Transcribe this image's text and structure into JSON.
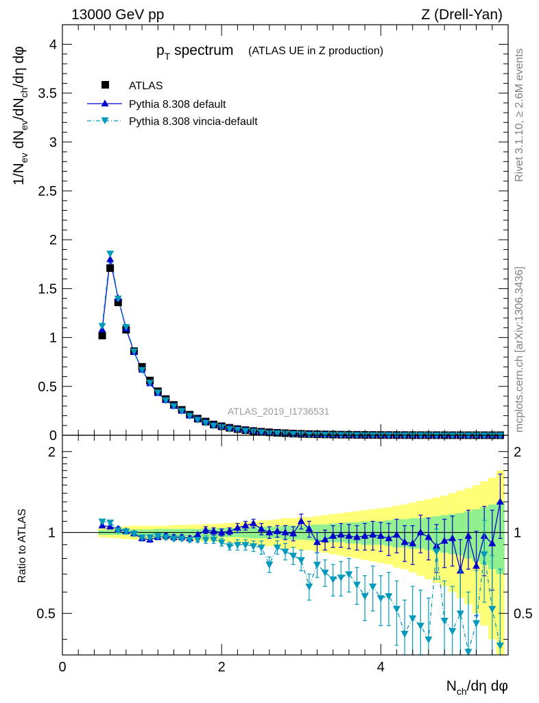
{
  "header": {
    "left": "13000 GeV pp",
    "right": "Z (Drell-Yan)"
  },
  "side_text": {
    "rivet": "Rivet 3.1.10, ≥ 2.6M events",
    "mcplots": "mcplots.cern.ch [arXiv:1306.3436]"
  },
  "chart_data": [
    {
      "type": "scatter",
      "panel": "main",
      "title": "p_T spectrum",
      "title_main": "p",
      "title_sub": "T",
      "title_rest": " spectrum",
      "subtitle": "(ATLAS UE in Z production)",
      "analysis_label": "ATLAS_2019_I1736531",
      "ylabel": "1/N_ev dN_ev/dN_ch/dη dφ",
      "xlim": [
        0,
        5.6
      ],
      "ylim": [
        0,
        4.2
      ],
      "yticks": [
        "0",
        "0.5",
        "1",
        "1.5",
        "2",
        "2.5",
        "3",
        "3.5",
        "4"
      ],
      "legend_position": "top-left",
      "x": [
        0.5,
        0.6,
        0.7,
        0.8,
        0.9,
        1.0,
        1.1,
        1.2,
        1.3,
        1.4,
        1.5,
        1.6,
        1.7,
        1.8,
        1.9,
        2.0,
        2.1,
        2.2,
        2.3,
        2.4,
        2.5,
        2.6,
        2.7,
        2.8,
        2.9,
        3.0,
        3.1,
        3.2,
        3.3,
        3.4,
        3.5,
        3.6,
        3.7,
        3.8,
        3.9,
        4.0,
        4.1,
        4.2,
        4.3,
        4.4,
        4.5,
        4.6,
        4.7,
        4.8,
        4.9,
        5.0,
        5.1,
        5.2,
        5.3,
        5.4,
        5.5
      ],
      "series": [
        {
          "name": "ATLAS",
          "color": "#000000",
          "marker": "square",
          "values": [
            1.02,
            1.71,
            1.36,
            1.08,
            0.86,
            0.7,
            0.56,
            0.45,
            0.37,
            0.31,
            0.26,
            0.21,
            0.17,
            0.14,
            0.11,
            0.092,
            0.076,
            0.063,
            0.052,
            0.043,
            0.036,
            0.03,
            0.025,
            0.021,
            0.017,
            0.014,
            0.012,
            0.01,
            0.0085,
            0.0071,
            0.0059,
            0.005,
            0.0042,
            0.0035,
            0.0029,
            0.0025,
            0.0021,
            0.0017,
            0.0015,
            0.0012,
            0.001,
            0.0009,
            0.0007,
            0.0006,
            0.0005,
            0.0004,
            0.0004,
            0.0003,
            0.0003,
            0.0002,
            0.0002
          ]
        },
        {
          "name": "Pythia 8.308 default",
          "color": "#0000cc",
          "marker": "triangle-up",
          "values": [
            1.08,
            1.8,
            1.4,
            1.09,
            0.85,
            0.67,
            0.53,
            0.43,
            0.36,
            0.3,
            0.25,
            0.2,
            0.17,
            0.14,
            0.11,
            0.092,
            0.077,
            0.065,
            0.055,
            0.046,
            0.037,
            0.03,
            0.025,
            0.021,
            0.018,
            0.015,
            0.012,
            0.0092,
            0.0078,
            0.0068,
            0.0056,
            0.0048,
            0.004,
            0.0034,
            0.0028,
            0.0023,
            0.002,
            0.0016,
            0.0014,
            0.0011,
            0.0009,
            0.0009,
            0.0006,
            0.0005,
            0.0005,
            0.0003,
            0.0004,
            0.0002,
            0.0003,
            0.0002,
            0.00026
          ]
        },
        {
          "name": "Pythia 8.308 vincia-default",
          "color": "#0099bb",
          "marker": "triangle-down",
          "values": [
            1.12,
            1.86,
            1.4,
            1.11,
            0.86,
            0.67,
            0.54,
            0.44,
            0.36,
            0.3,
            0.25,
            0.2,
            0.16,
            0.13,
            0.1,
            0.085,
            0.067,
            0.057,
            0.047,
            0.039,
            0.032,
            0.023,
            0.022,
            0.018,
            0.014,
            0.012,
            0.0076,
            0.0079,
            0.006,
            0.0048,
            0.004,
            0.0035,
            0.003,
            0.0023,
            0.002,
            0.0016,
            0.0014,
            0.0011,
            0.0009,
            0.0007,
            0.0006,
            0.0005,
            0.0004,
            0.0003,
            0.0002,
            0.0003,
            0.0002,
            0.0001,
            0.0001,
            0.0001,
            8e-05
          ]
        }
      ]
    },
    {
      "type": "scatter",
      "panel": "ratio",
      "ylabel": "Ratio to ATLAS",
      "xlabel": "N_ch/dη dφ",
      "xlim": [
        0,
        5.6
      ],
      "ylim": [
        0.35,
        2.3
      ],
      "ylog": true,
      "xticks": [
        "0",
        "2",
        "4"
      ],
      "yticks": [
        "0.5",
        "1",
        "2"
      ],
      "x": [
        0.5,
        0.6,
        0.7,
        0.8,
        0.9,
        1.0,
        1.1,
        1.2,
        1.3,
        1.4,
        1.5,
        1.6,
        1.7,
        1.8,
        1.9,
        2.0,
        2.1,
        2.2,
        2.3,
        2.4,
        2.5,
        2.6,
        2.7,
        2.8,
        2.9,
        3.0,
        3.1,
        3.2,
        3.3,
        3.4,
        3.5,
        3.6,
        3.7,
        3.8,
        3.9,
        4.0,
        4.1,
        4.2,
        4.3,
        4.4,
        4.5,
        4.6,
        4.7,
        4.8,
        4.9,
        5.0,
        5.1,
        5.2,
        5.3,
        5.4,
        5.5
      ],
      "band_stat_halfwidth": [
        0.02,
        0.02,
        0.02,
        0.02,
        0.025,
        0.025,
        0.025,
        0.03,
        0.03,
        0.03,
        0.03,
        0.03,
        0.03,
        0.035,
        0.035,
        0.04,
        0.04,
        0.04,
        0.045,
        0.05,
        0.05,
        0.05,
        0.05,
        0.06,
        0.06,
        0.06,
        0.065,
        0.07,
        0.07,
        0.08,
        0.08,
        0.09,
        0.09,
        0.1,
        0.1,
        0.1,
        0.11,
        0.12,
        0.12,
        0.13,
        0.13,
        0.14,
        0.15,
        0.16,
        0.17,
        0.18,
        0.2,
        0.22,
        0.24,
        0.27,
        0.3
      ],
      "band_total_halfwidth": [
        0.04,
        0.045,
        0.05,
        0.055,
        0.06,
        0.06,
        0.06,
        0.06,
        0.06,
        0.065,
        0.065,
        0.07,
        0.07,
        0.075,
        0.075,
        0.08,
        0.085,
        0.09,
        0.095,
        0.1,
        0.11,
        0.11,
        0.12,
        0.13,
        0.13,
        0.14,
        0.14,
        0.15,
        0.16,
        0.17,
        0.18,
        0.19,
        0.2,
        0.21,
        0.22,
        0.23,
        0.24,
        0.26,
        0.27,
        0.29,
        0.31,
        0.33,
        0.35,
        0.37,
        0.4,
        0.43,
        0.46,
        0.5,
        0.55,
        0.6,
        0.7
      ],
      "series": [
        {
          "name": "Pythia 8.308 default",
          "color": "#0000cc",
          "marker": "triangle-up",
          "values": [
            1.06,
            1.05,
            1.03,
            1.01,
            0.99,
            0.95,
            0.94,
            0.96,
            0.97,
            0.96,
            0.96,
            0.95,
            0.98,
            1.02,
            1.01,
            1.0,
            1.01,
            1.04,
            1.06,
            1.08,
            1.03,
            1.0,
            1.01,
            1.0,
            0.99,
            1.1,
            1.03,
            0.92,
            0.94,
            0.97,
            0.98,
            0.97,
            0.96,
            0.97,
            0.98,
            0.97,
            0.95,
            0.98,
            0.92,
            0.91,
            1.0,
            0.96,
            0.89,
            0.93,
            0.95,
            0.72,
            0.97,
            0.75,
            0.97,
            0.91,
            1.3
          ],
          "err": [
            0.02,
            0.02,
            0.02,
            0.02,
            0.02,
            0.02,
            0.02,
            0.02,
            0.02,
            0.02,
            0.02,
            0.02,
            0.02,
            0.03,
            0.03,
            0.03,
            0.03,
            0.04,
            0.04,
            0.04,
            0.05,
            0.05,
            0.05,
            0.06,
            0.06,
            0.07,
            0.07,
            0.08,
            0.08,
            0.09,
            0.1,
            0.1,
            0.1,
            0.11,
            0.12,
            0.12,
            0.13,
            0.14,
            0.14,
            0.15,
            0.16,
            0.17,
            0.18,
            0.19,
            0.2,
            0.22,
            0.24,
            0.26,
            0.28,
            0.3,
            0.35
          ]
        },
        {
          "name": "Pythia 8.308 vincia-default",
          "color": "#0099bb",
          "marker": "triangle-down",
          "values": [
            1.1,
            1.09,
            1.02,
            1.01,
            0.99,
            0.96,
            0.96,
            0.97,
            0.96,
            0.95,
            0.95,
            0.94,
            0.94,
            0.94,
            0.94,
            0.92,
            0.89,
            0.9,
            0.9,
            0.89,
            0.88,
            0.76,
            0.88,
            0.85,
            0.82,
            0.79,
            0.63,
            0.76,
            0.71,
            0.67,
            0.68,
            0.7,
            0.64,
            0.58,
            0.63,
            0.57,
            0.58,
            0.52,
            0.42,
            0.48,
            0.45,
            0.4,
            0.85,
            0.47,
            0.43,
            0.5,
            0.36,
            0.46,
            0.83,
            0.52,
            0.38
          ],
          "err": [
            0.02,
            0.02,
            0.02,
            0.02,
            0.02,
            0.02,
            0.02,
            0.02,
            0.02,
            0.02,
            0.02,
            0.02,
            0.02,
            0.03,
            0.03,
            0.03,
            0.03,
            0.04,
            0.04,
            0.04,
            0.05,
            0.05,
            0.05,
            0.06,
            0.06,
            0.07,
            0.07,
            0.08,
            0.08,
            0.09,
            0.1,
            0.1,
            0.1,
            0.11,
            0.12,
            0.12,
            0.13,
            0.14,
            0.14,
            0.15,
            0.16,
            0.17,
            0.18,
            0.19,
            0.2,
            0.22,
            0.24,
            0.26,
            0.28,
            0.3,
            0.35
          ]
        }
      ]
    }
  ]
}
